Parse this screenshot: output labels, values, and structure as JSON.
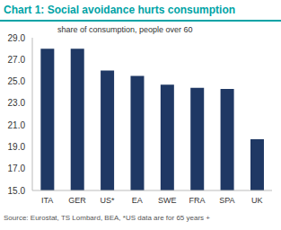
{
  "chart_data": {
    "type": "bar",
    "title": "Chart 1: Social avoidance hurts consumption",
    "annotation": "share of consumption, people over 60",
    "source": "Source: Eurostat, TS Lombard, BEA, *US data are for 65 years +",
    "categories": [
      "ITA",
      "GER",
      "US*",
      "EA",
      "SWE",
      "FRA",
      "SPA",
      "UK"
    ],
    "values": [
      28.0,
      28.0,
      26.0,
      25.5,
      24.7,
      24.4,
      24.3,
      19.7
    ],
    "color": "#1f3864",
    "ylim": [
      15,
      29
    ],
    "yticks": [
      {
        "value": 15,
        "label": "15.0"
      },
      {
        "value": 17,
        "label": "17.0"
      },
      {
        "value": 19,
        "label": "19.0"
      },
      {
        "value": 21,
        "label": "21.0"
      },
      {
        "value": 23,
        "label": "23.0"
      },
      {
        "value": 25,
        "label": "25.0"
      },
      {
        "value": 27,
        "label": "27.0"
      },
      {
        "value": 29,
        "label": "29.0"
      }
    ],
    "grid": false
  }
}
